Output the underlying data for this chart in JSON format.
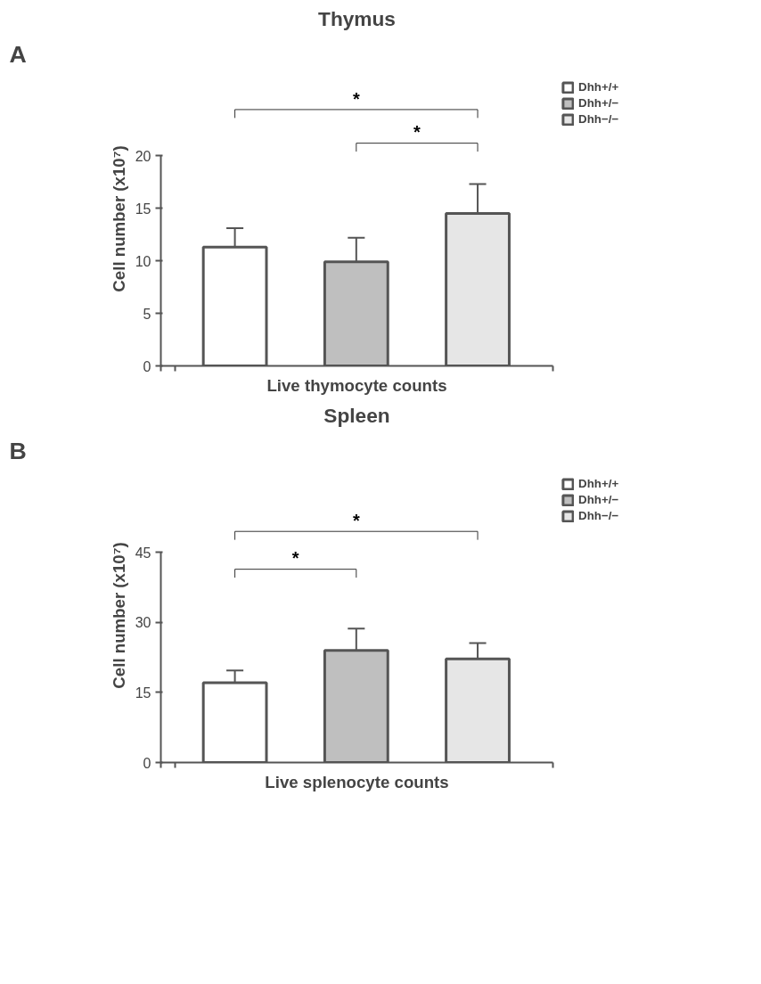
{
  "chart_data": [
    {
      "type": "bar",
      "title": "Thymus",
      "xlabel": "Live thymocyte counts",
      "ylabel": "Cell number (x10⁷)",
      "categories": [
        null
      ],
      "series": [
        {
          "name": "Dhh+/+",
          "color": "#ffffff",
          "values": [
            11.3
          ],
          "errors": [
            1.8
          ]
        },
        {
          "name": "Dhh+/−",
          "color": "#bfbfbf",
          "values": [
            9.9
          ],
          "errors": [
            2.3
          ]
        },
        {
          "name": "Dhh−/−",
          "color": "#e6e6e6",
          "values": [
            14.5
          ],
          "errors": [
            2.8
          ]
        }
      ],
      "ylim": [
        0,
        20
      ],
      "yticks": [
        0,
        5,
        10,
        15,
        20
      ],
      "legend": "right",
      "annotations": [
        "A",
        "*",
        "*"
      ]
    },
    {
      "type": "bar",
      "title": "Spleen",
      "xlabel": "Live splenocyte counts",
      "ylabel": "Cell number (x10⁷)",
      "categories": [
        null
      ],
      "series": [
        {
          "name": "Dhh+/+",
          "color": "#ffffff",
          "values": [
            17.1
          ],
          "errors": [
            2.6
          ]
        },
        {
          "name": "Dhh+/−",
          "color": "#bfbfbf",
          "values": [
            24.0
          ],
          "errors": [
            4.7
          ]
        },
        {
          "name": "Dhh−/−",
          "color": "#e6e6e6",
          "values": [
            22.2
          ],
          "errors": [
            3.4
          ]
        }
      ],
      "ylim": [
        0,
        45
      ],
      "yticks": [
        0,
        15,
        30,
        45
      ],
      "legend": "right",
      "annotations": [
        "B",
        "*",
        "*"
      ]
    }
  ]
}
